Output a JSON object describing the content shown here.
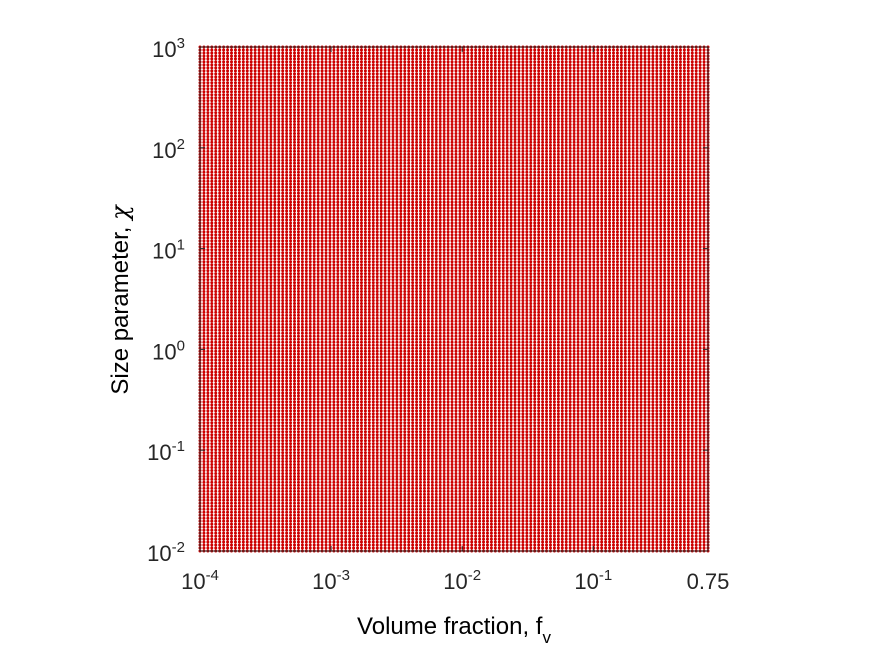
{
  "chart_data": {
    "type": "scatter",
    "title": "",
    "xlabel": "Volume fraction, f",
    "xlabel_subscript": "v",
    "ylabel": "Size parameter, ",
    "ylabel_symbol": "χ",
    "x_scale": "log",
    "y_scale": "log",
    "xlim": [
      0.0001,
      0.75
    ],
    "ylim": [
      0.01,
      1000
    ],
    "grid": false,
    "legend": "none",
    "marker_color": "#cc0000",
    "x_ticks": [
      {
        "value": 0.0001,
        "base": "10",
        "exp": "-4"
      },
      {
        "value": 0.001,
        "base": "10",
        "exp": "-3"
      },
      {
        "value": 0.01,
        "base": "10",
        "exp": "-2"
      },
      {
        "value": 0.1,
        "base": "10",
        "exp": "-1"
      },
      {
        "value": 0.75,
        "base": "0.75",
        "exp": ""
      }
    ],
    "y_ticks": [
      {
        "value": 0.01,
        "base": "10",
        "exp": "-2"
      },
      {
        "value": 0.1,
        "base": "10",
        "exp": "-1"
      },
      {
        "value": 1,
        "base": "10",
        "exp": "0"
      },
      {
        "value": 10,
        "base": "10",
        "exp": "1"
      },
      {
        "value": 100,
        "base": "10",
        "exp": "2"
      },
      {
        "value": 1000,
        "base": "10",
        "exp": "3"
      }
    ],
    "sample_grid": {
      "x_points": 130,
      "y_points": 170,
      "distribution": "log-uniform",
      "x_range": [
        0.0001,
        0.75
      ],
      "y_range": [
        0.01,
        1000
      ]
    }
  }
}
